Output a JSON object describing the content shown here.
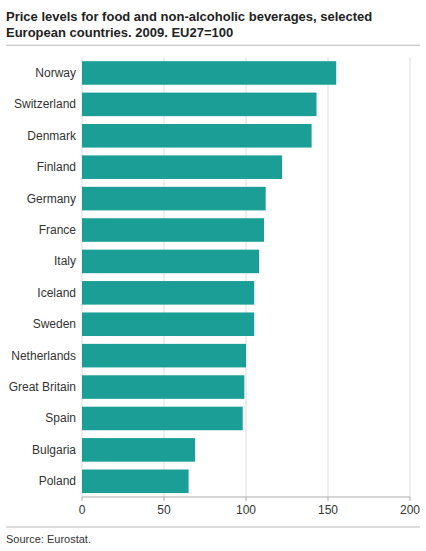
{
  "chart_data": {
    "type": "bar",
    "orientation": "horizontal",
    "title": "Price levels for food and non-alcoholic beverages, selected\nEuropean countries. 2009. EU27=100",
    "categories": [
      "Norway",
      "Switzerland",
      "Denmark",
      "Finland",
      "Germany",
      "France",
      "Italy",
      "Iceland",
      "Sweden",
      "Netherlands",
      "Great Britain",
      "Spain",
      "Bulgaria",
      "Poland"
    ],
    "values": [
      155,
      143,
      140,
      122,
      112,
      111,
      108,
      105,
      105,
      100,
      99,
      98,
      69,
      65
    ],
    "color": "#1a9e96",
    "xlim": [
      0,
      200
    ],
    "xticks": [
      0,
      50,
      100,
      150,
      200
    ],
    "grid": true,
    "annotations": [
      "Source: Eurostat."
    ]
  }
}
